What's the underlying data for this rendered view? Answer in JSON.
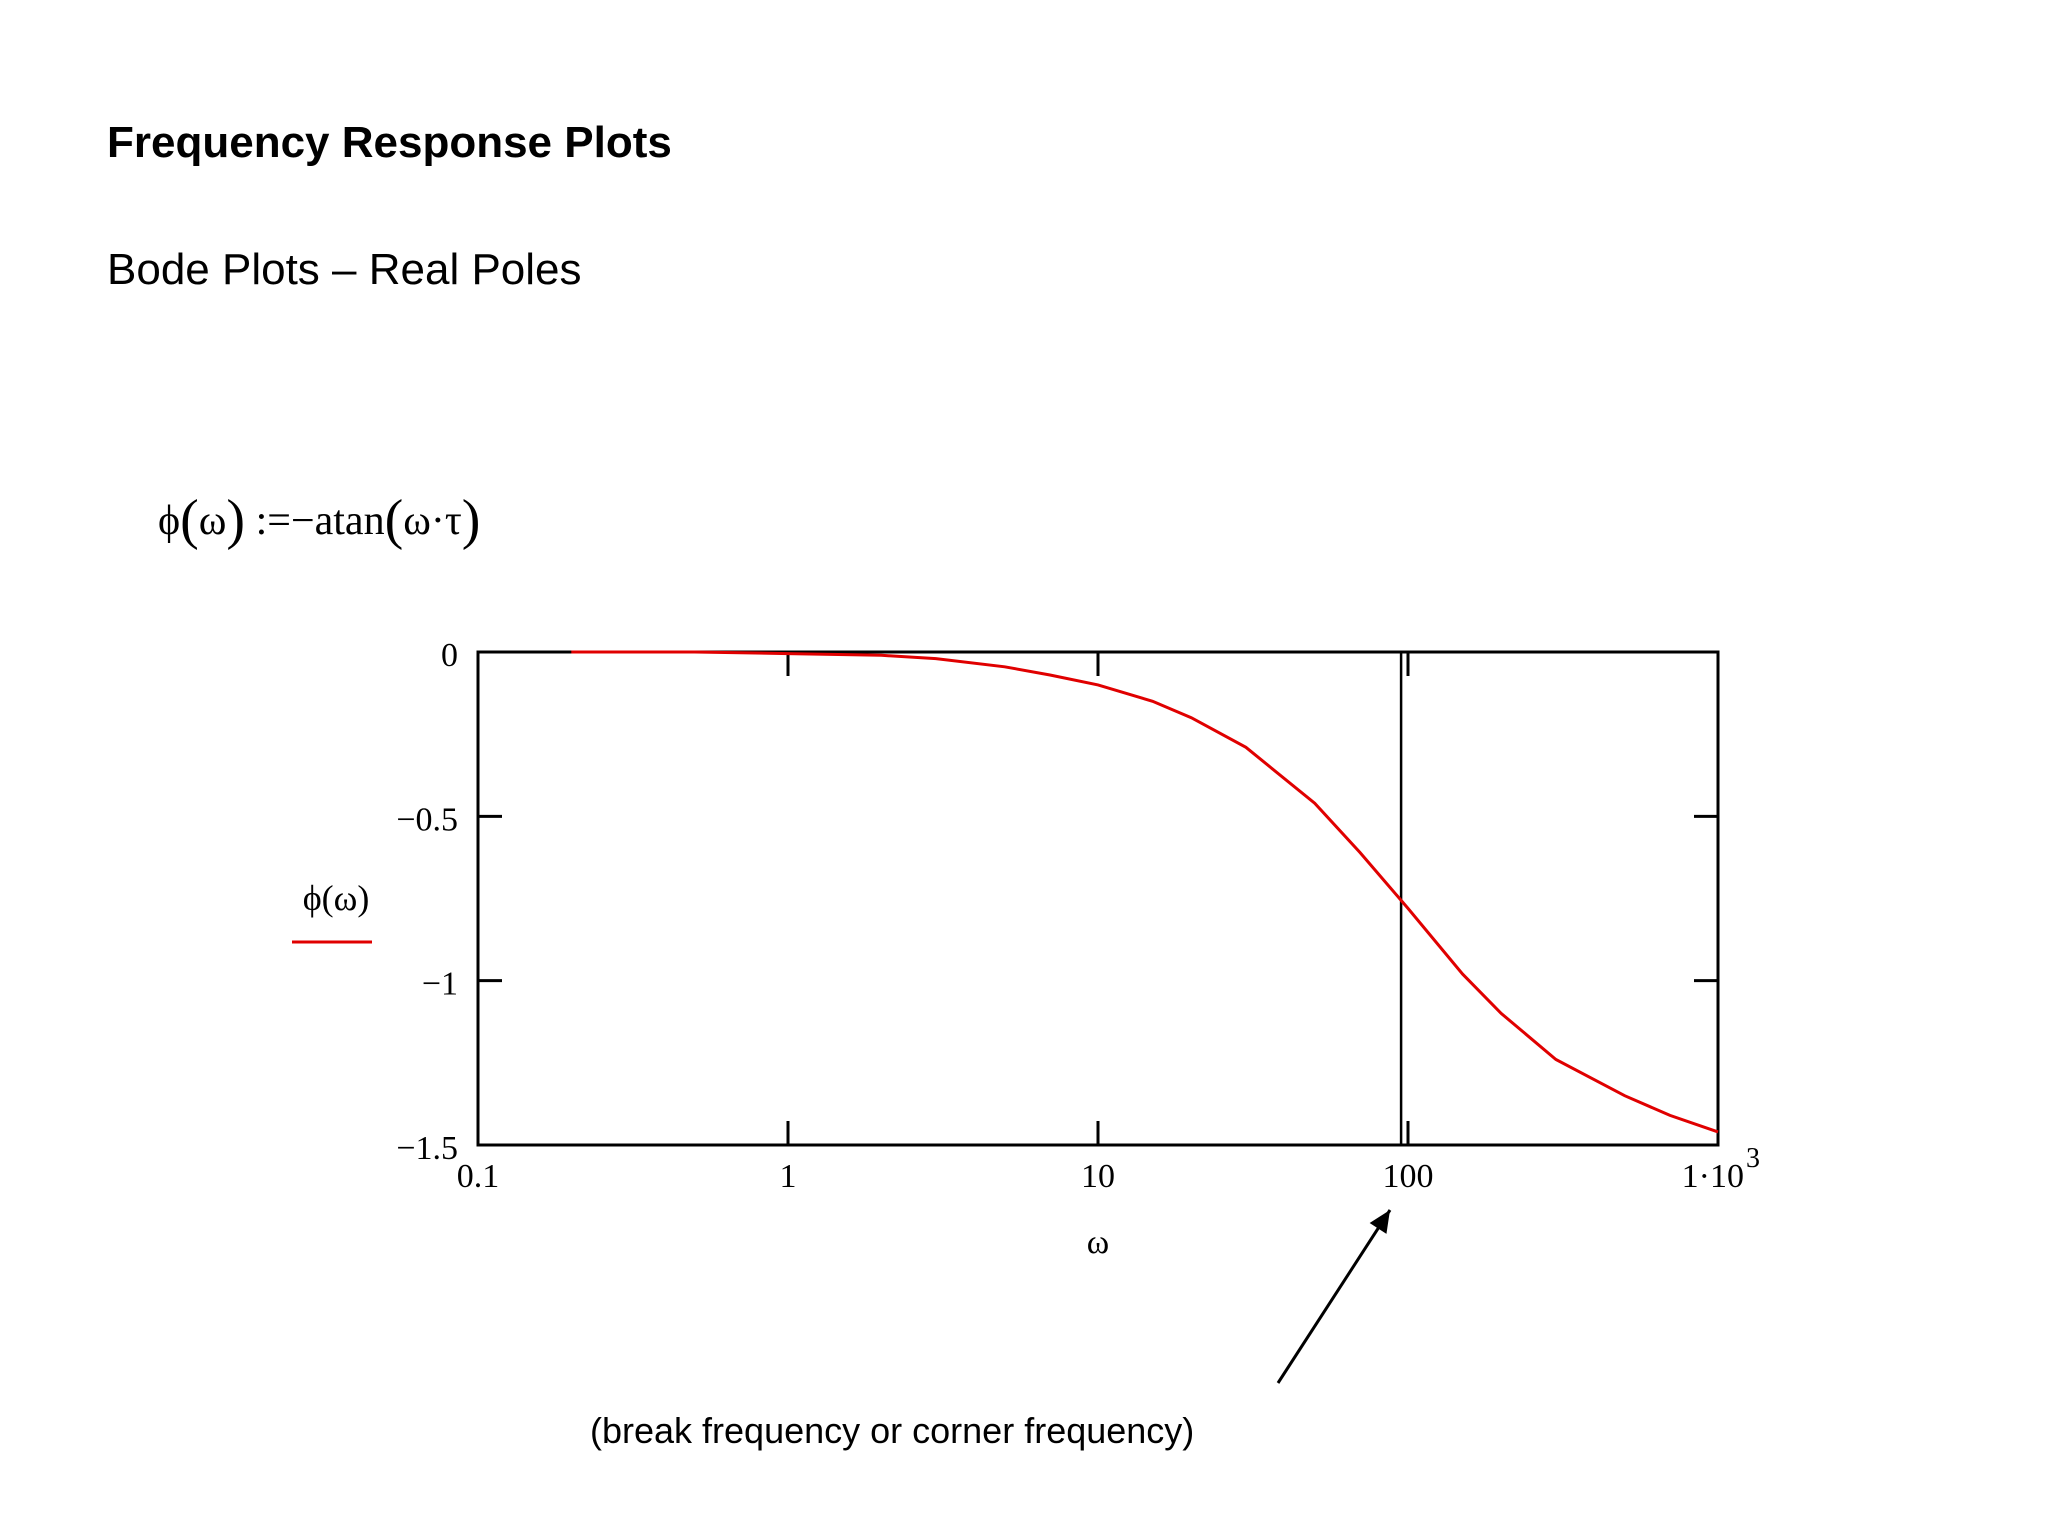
{
  "page": {
    "heading": "Frequency Response Plots",
    "subheading": "Bode Plots – Real Poles",
    "formula": {
      "lhs": "ϕ",
      "lhs_arg": "ω",
      "assign": ":=",
      "rhs_func": "−atan",
      "rhs_arg": "ω·τ"
    },
    "caption": "(break frequency or corner frequency)"
  },
  "chart_data": {
    "type": "line",
    "x_scale": "log",
    "xlim": [
      0.1,
      1000
    ],
    "ylim": [
      -1.5,
      0
    ],
    "xlabel": "ω",
    "legend": {
      "label": "ϕ(ω)",
      "placement": "left",
      "color": "#e00000"
    },
    "x_ticks": [
      {
        "value": 0.1,
        "label": "0.1"
      },
      {
        "value": 1,
        "label": "1"
      },
      {
        "value": 10,
        "label": "10"
      },
      {
        "value": 100,
        "label": "100"
      },
      {
        "value": 1000,
        "label": "1·10",
        "exponent": "3"
      }
    ],
    "y_ticks": [
      {
        "value": 0,
        "label": "0"
      },
      {
        "value": -0.5,
        "label": "−0.5"
      },
      {
        "value": -1,
        "label": "−1"
      },
      {
        "value": -1.5,
        "label": "−1.5"
      }
    ],
    "series": [
      {
        "name": "ϕ(ω)",
        "color": "#e00000",
        "x": [
          0.2,
          0.5,
          1,
          2,
          3,
          5,
          7,
          10,
          15,
          20,
          30,
          50,
          70,
          100,
          150,
          200,
          300,
          500,
          700,
          1000
        ],
        "y": [
          0,
          0,
          -0.005,
          -0.01,
          -0.02,
          -0.045,
          -0.07,
          -0.1,
          -0.15,
          -0.2,
          -0.29,
          -0.46,
          -0.61,
          -0.78,
          -0.98,
          -1.1,
          -1.24,
          -1.35,
          -1.41,
          -1.46
        ]
      }
    ],
    "vertical_marker": {
      "x": 95,
      "color": "#000000"
    },
    "annotation_arrow": {
      "from_caption": true,
      "points_to_x": 100
    },
    "colors": {
      "curve": "#e00000",
      "axes": "#000000"
    }
  }
}
